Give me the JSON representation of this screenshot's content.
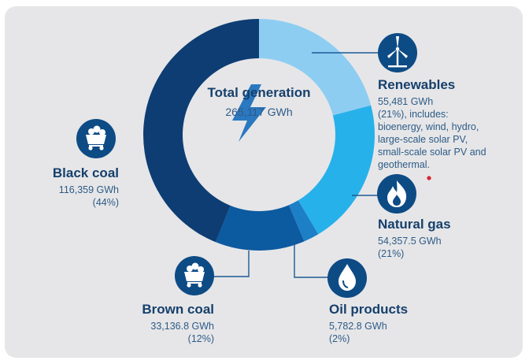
{
  "chart_data": {
    "type": "pie",
    "donut": true,
    "center": {
      "title": "Total generation",
      "value": "265,117 GWh"
    },
    "slices": [
      {
        "name": "Renewables",
        "value_text": "55,481 GWh",
        "percent_text": "(21%), includes: bioenergy, wind, hydro, large-scale solar PV, small-scale solar PV and geothermal.",
        "value": 55481,
        "color": "#8ecdf2",
        "icon": "wind-turbine-icon"
      },
      {
        "name": "Natural gas",
        "value_text": "54,357.5 GWh",
        "percent_text": "(21%)",
        "value": 54357.5,
        "color": "#27b1ea",
        "icon": "flame-icon"
      },
      {
        "name": "Oil products",
        "value_text": "5,782.8 GWh",
        "percent_text": "(2%)",
        "value": 5782.8,
        "color": "#1d7fc6",
        "icon": "oil-drop-icon"
      },
      {
        "name": "Brown coal",
        "value_text": "33,136.8 GWh",
        "percent_text": "(12%)",
        "value": 33136.8,
        "color": "#0c5aa0",
        "icon": "coal-cart-icon"
      },
      {
        "name": "Black coal",
        "value_text": "116,359 GWh",
        "percent_text": "(44%)",
        "value": 116359,
        "color": "#0d3d73",
        "icon": "coal-cart-icon"
      }
    ]
  },
  "colors": {
    "accent_dot": "#d9232d",
    "icon_circle": "#0d4b85",
    "bolt": "#2a78c0",
    "line": "#1b5a96"
  }
}
